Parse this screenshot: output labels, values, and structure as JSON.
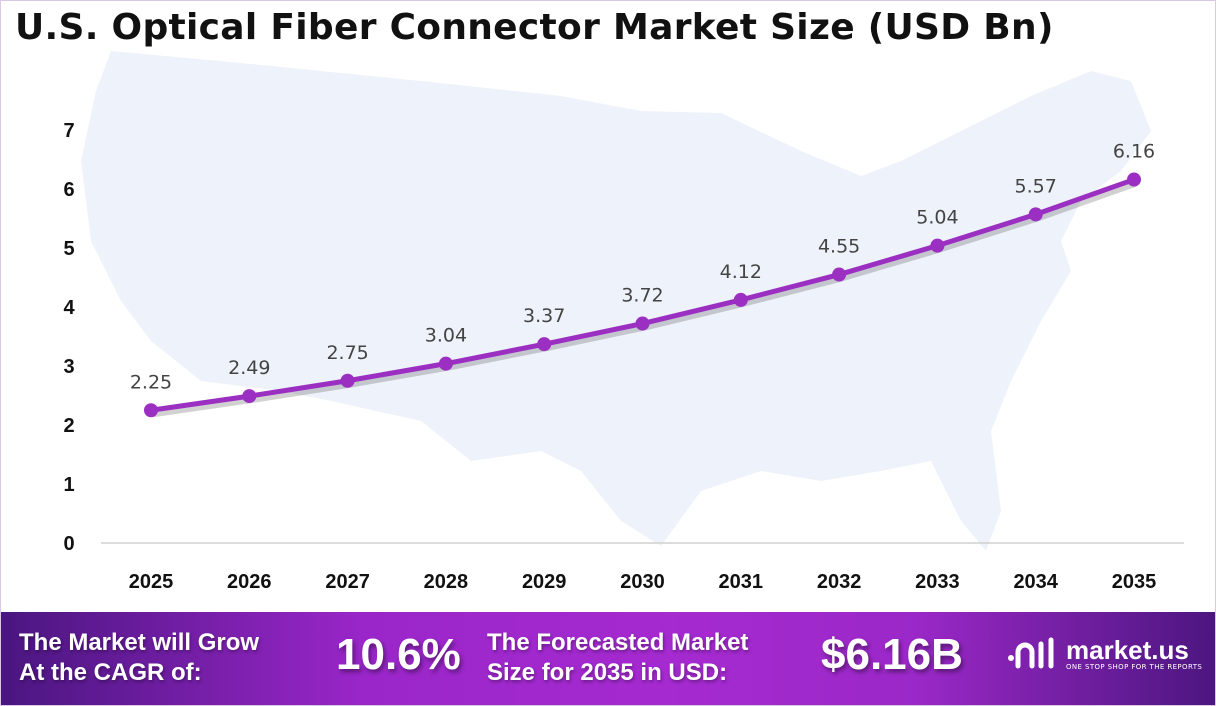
{
  "chart_data": {
    "type": "line",
    "title": "U.S. Optical Fiber Connector Market Size (USD Bn)",
    "categories": [
      "2025",
      "2026",
      "2027",
      "2028",
      "2029",
      "2030",
      "2031",
      "2032",
      "2033",
      "2034",
      "2035"
    ],
    "values": [
      2.25,
      2.49,
      2.75,
      3.04,
      3.37,
      3.72,
      4.12,
      4.55,
      5.04,
      5.57,
      6.16
    ],
    "yticks": [
      "0",
      "1",
      "2",
      "3",
      "4",
      "5",
      "6",
      "7"
    ],
    "ylim": [
      0,
      7
    ],
    "grid": false,
    "line_color": "#9b2fc2",
    "data_labels": true
  },
  "footer": {
    "cagr_text": [
      "The Market will Grow",
      "At the CAGR of:"
    ],
    "cagr_value": "10.6%",
    "forecast_text": [
      "The Forecasted Market",
      "Size for 2035 in USD:"
    ],
    "forecast_value": "$6.16B",
    "logo_name": "market.us",
    "logo_tagline": "ONE STOP SHOP FOR THE REPORTS"
  }
}
